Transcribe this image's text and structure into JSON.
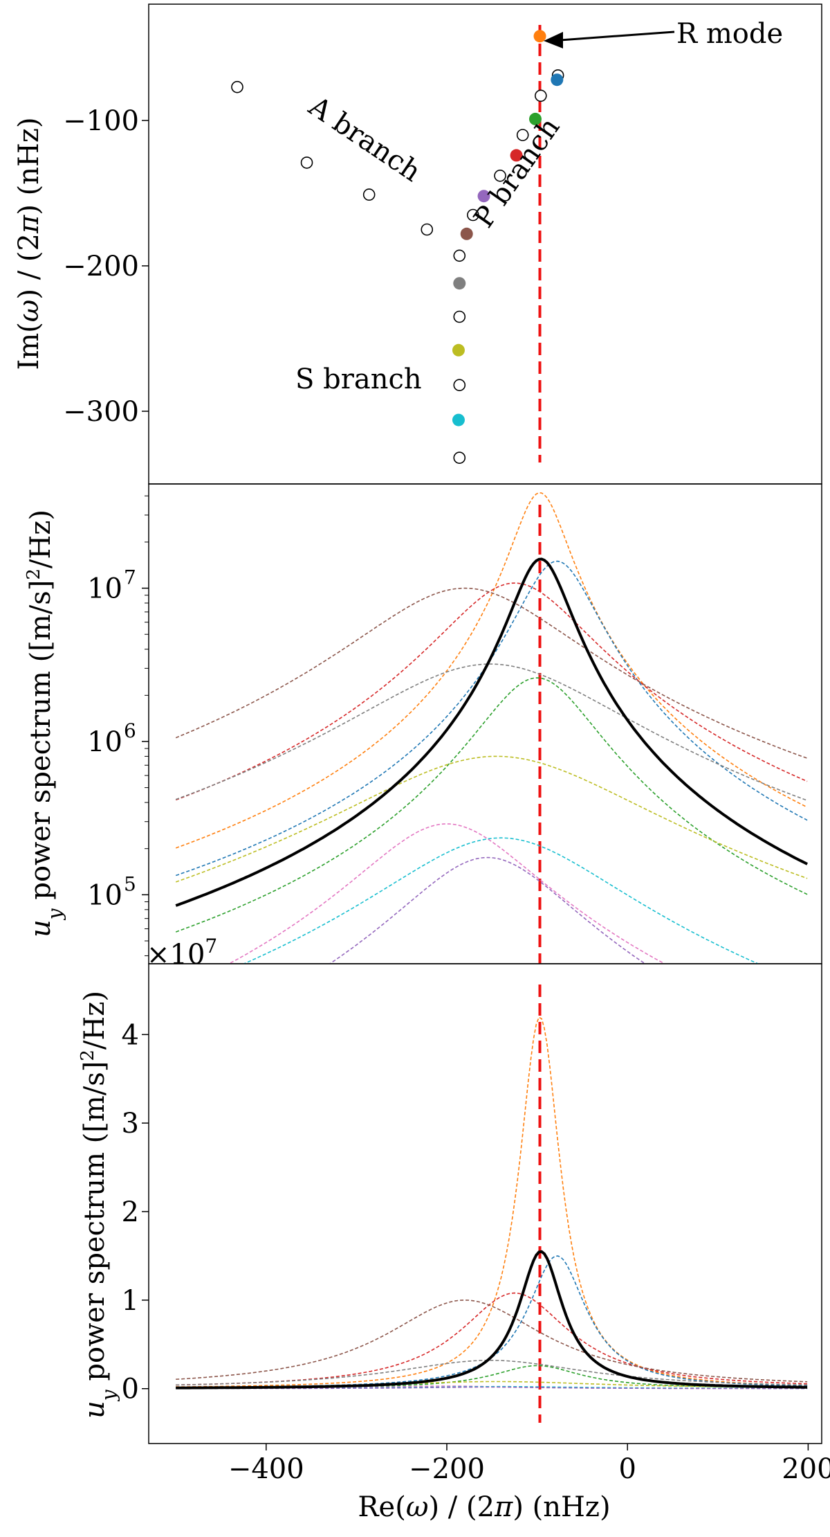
{
  "figure": {
    "xlabel": "Re(ω) / (2π) (nHz)",
    "xlim": [
      -530,
      215
    ],
    "xticks": [
      -400,
      -200,
      0,
      200
    ],
    "xtick_labels": [
      "−400",
      "−200",
      "0",
      "200"
    ],
    "r_mode_line_x": -97,
    "r_mode_line_color": "#ee1111"
  },
  "series_colors": {
    "blue": "#1f77b4",
    "orange": "#ff7f0e",
    "green": "#2ca02c",
    "red": "#d62728",
    "purple": "#9467bd",
    "brown": "#8c564b",
    "pink": "#e377c2",
    "gray": "#7f7f7f",
    "olive": "#bcbd22",
    "cyan": "#17becf"
  },
  "chart_data": [
    {
      "type": "scatter",
      "panel": "eigenvalues",
      "ylabel": "Im(ω) / (2π) (nHz)",
      "ylim": [
        -350,
        -20
      ],
      "yticks": [
        -100,
        -200,
        -300
      ],
      "ytick_labels": [
        "−100",
        "−200",
        "−300"
      ],
      "filled_points": [
        {
          "x": -97,
          "y": -42,
          "color": "orange"
        },
        {
          "x": -78,
          "y": -72,
          "color": "blue"
        },
        {
          "x": -102,
          "y": -99,
          "color": "green"
        },
        {
          "x": -123,
          "y": -124,
          "color": "red"
        },
        {
          "x": -159,
          "y": -152,
          "color": "purple"
        },
        {
          "x": -178,
          "y": -178,
          "color": "brown"
        },
        {
          "x": -186,
          "y": -212,
          "color": "gray"
        },
        {
          "x": -187,
          "y": -258,
          "color": "olive"
        },
        {
          "x": -187,
          "y": -306,
          "color": "cyan"
        }
      ],
      "open_points": [
        {
          "x": -432,
          "y": -77
        },
        {
          "x": -355,
          "y": -129
        },
        {
          "x": -286,
          "y": -151
        },
        {
          "x": -222,
          "y": -175
        },
        {
          "x": -171,
          "y": -165
        },
        {
          "x": -141,
          "y": -138
        },
        {
          "x": -116,
          "y": -110
        },
        {
          "x": -96,
          "y": -83
        },
        {
          "x": -77,
          "y": -69
        },
        {
          "x": -186,
          "y": -193
        },
        {
          "x": -186,
          "y": -235
        },
        {
          "x": -186,
          "y": -282
        },
        {
          "x": -186,
          "y": -332
        }
      ],
      "annotations": {
        "r_mode": "R mode",
        "a_branch": "A branch",
        "p_branch": "P branch",
        "s_branch": "S branch"
      }
    },
    {
      "type": "line",
      "panel": "log-spectrum",
      "yscale": "log",
      "ylabel": "u_y power spectrum ([m/s]^2/Hz)",
      "ylim_log10": [
        4.55,
        7.68
      ],
      "yticks": [
        5,
        6,
        7
      ],
      "ytick_labels": [
        "10",
        "10",
        "10"
      ],
      "ytick_exponents": [
        "5",
        "6",
        "7"
      ],
      "offset_text": "×10",
      "offset_exponent": "7"
    },
    {
      "type": "line",
      "panel": "linear-spectrum",
      "yscale": "linear",
      "ylabel": "u_y power spectrum ([m/s]^2/Hz)",
      "ylim": [
        -0.62,
        4.8
      ],
      "yticks": [
        0,
        1,
        2,
        3,
        4
      ],
      "ytick_labels": [
        "0",
        "1",
        "2",
        "3",
        "4"
      ],
      "unit_multiplier": 10000000
    }
  ],
  "spectra": {
    "x_range": [
      -500,
      200
    ],
    "components": [
      {
        "color": "orange",
        "peak": 42000000,
        "center": -97,
        "width": 28
      },
      {
        "color": "blue",
        "peak": 15000000,
        "center": -78,
        "width": 40
      },
      {
        "color": "red",
        "peak": 10800000,
        "center": -125,
        "width": 75
      },
      {
        "color": "brown",
        "peak": 10000000,
        "center": -180,
        "width": 110
      },
      {
        "color": "gray",
        "peak": 3200000,
        "center": -152,
        "width": 135
      },
      {
        "color": "green",
        "peak": 2600000,
        "center": -100,
        "width": 60
      },
      {
        "color": "olive",
        "peak": 800000,
        "center": -145,
        "width": 150
      },
      {
        "color": "pink",
        "peak": 290000,
        "center": -200,
        "width": 90
      },
      {
        "color": "cyan",
        "peak": 235000,
        "center": -140,
        "width": 120
      },
      {
        "color": "purple",
        "peak": 175000,
        "center": -155,
        "width": 88
      }
    ],
    "total": {
      "color": "#000000",
      "peak": 15500000,
      "center": -96,
      "width": 30
    }
  }
}
